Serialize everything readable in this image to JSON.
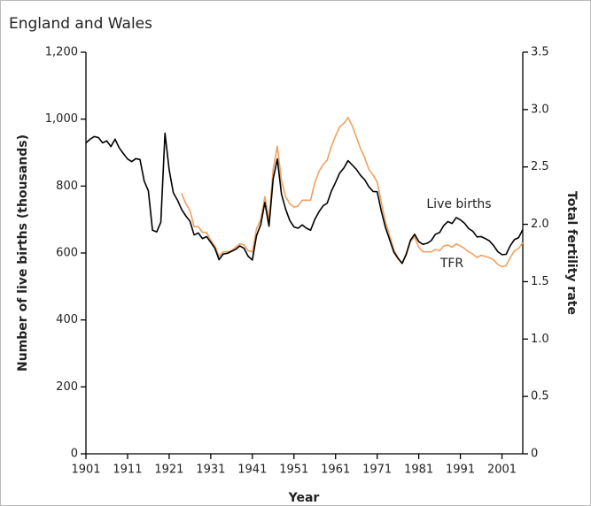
{
  "chart_data": {
    "type": "line",
    "title": "England and Wales",
    "xlabel": "Year",
    "ylabel": "Number of live births (thousands)",
    "y2label": "Total fertility rate",
    "x": [
      1901,
      1902,
      1903,
      1904,
      1905,
      1906,
      1907,
      1908,
      1909,
      1910,
      1911,
      1912,
      1913,
      1914,
      1915,
      1916,
      1917,
      1918,
      1919,
      1920,
      1921,
      1922,
      1923,
      1924,
      1925,
      1926,
      1927,
      1928,
      1929,
      1930,
      1931,
      1932,
      1933,
      1934,
      1935,
      1936,
      1937,
      1938,
      1939,
      1940,
      1941,
      1942,
      1943,
      1944,
      1945,
      1946,
      1947,
      1948,
      1949,
      1950,
      1951,
      1952,
      1953,
      1954,
      1955,
      1956,
      1957,
      1958,
      1959,
      1960,
      1961,
      1962,
      1963,
      1964,
      1965,
      1966,
      1967,
      1968,
      1969,
      1970,
      1971,
      1972,
      1973,
      1974,
      1975,
      1976,
      1977,
      1978,
      1979,
      1980,
      1981,
      1982,
      1983,
      1984,
      1985,
      1986,
      1987,
      1988,
      1989,
      1990,
      1991,
      1992,
      1993,
      1994,
      1995,
      1996,
      1997,
      1998,
      1999,
      2000,
      2001,
      2002,
      2003,
      2004,
      2005,
      2006
    ],
    "series": [
      {
        "name": "Live births",
        "color": "#000000",
        "values": [
          929,
          940,
          948,
          945,
          929,
          935,
          918,
          940,
          914,
          897,
          881,
          873,
          882,
          879,
          815,
          786,
          668,
          663,
          692,
          958,
          849,
          780,
          758,
          730,
          711,
          695,
          654,
          660,
          643,
          649,
          632,
          614,
          580,
          597,
          599,
          605,
          611,
          621,
          614,
          590,
          579,
          652,
          684,
          751,
          680,
          821,
          881,
          776,
          731,
          697,
          678,
          674,
          684,
          674,
          668,
          700,
          723,
          741,
          749,
          785,
          811,
          839,
          854,
          876,
          863,
          850,
          832,
          819,
          798,
          784,
          783,
          725,
          676,
          640,
          603,
          584,
          569,
          596,
          638,
          656,
          634,
          626,
          629,
          637,
          656,
          661,
          682,
          694,
          688,
          706,
          699,
          689,
          673,
          665,
          648,
          649,
          643,
          636,
          622,
          604,
          595,
          596,
          622,
          640,
          646,
          670
        ]
      },
      {
        "name": "TFR",
        "color": "#f0a060",
        "axis": "y2",
        "values": [
          null,
          null,
          null,
          null,
          null,
          null,
          null,
          null,
          null,
          null,
          null,
          null,
          null,
          null,
          null,
          null,
          null,
          null,
          null,
          null,
          null,
          null,
          null,
          2.27,
          2.18,
          2.12,
          1.98,
          1.98,
          1.93,
          1.93,
          1.86,
          1.81,
          1.72,
          1.76,
          1.76,
          1.77,
          1.8,
          1.83,
          1.82,
          1.77,
          1.76,
          1.96,
          2.04,
          2.24,
          2.04,
          2.48,
          2.68,
          2.38,
          2.24,
          2.18,
          2.15,
          2.16,
          2.21,
          2.21,
          2.21,
          2.36,
          2.46,
          2.52,
          2.56,
          2.68,
          2.77,
          2.85,
          2.88,
          2.93,
          2.86,
          2.76,
          2.66,
          2.58,
          2.48,
          2.43,
          2.37,
          2.19,
          2.02,
          1.9,
          1.78,
          1.71,
          1.66,
          1.75,
          1.85,
          1.89,
          1.8,
          1.76,
          1.76,
          1.76,
          1.78,
          1.77,
          1.81,
          1.82,
          1.8,
          1.83,
          1.81,
          1.79,
          1.76,
          1.74,
          1.71,
          1.73,
          1.72,
          1.71,
          1.69,
          1.65,
          1.63,
          1.64,
          1.71,
          1.77,
          1.79,
          1.84
        ]
      }
    ],
    "xlim": [
      1901,
      2006
    ],
    "xticks": [
      1901,
      1911,
      1921,
      1931,
      1941,
      1951,
      1961,
      1971,
      1981,
      1991,
      2001
    ],
    "ylim": [
      0,
      1200
    ],
    "yticks": [
      0,
      200,
      400,
      600,
      800,
      {
        "value": 1000,
        "label": "1,000"
      },
      {
        "value": 1200,
        "label": "1,200"
      }
    ],
    "y2lim": [
      0,
      3.5
    ],
    "y2ticks": [
      0,
      0.5,
      {
        "value": 1,
        "label": "1.0"
      },
      1.5,
      {
        "value": 2,
        "label": "2.0"
      },
      2.5,
      {
        "value": 3,
        "label": "3.0"
      },
      3.5
    ],
    "grid": false
  }
}
